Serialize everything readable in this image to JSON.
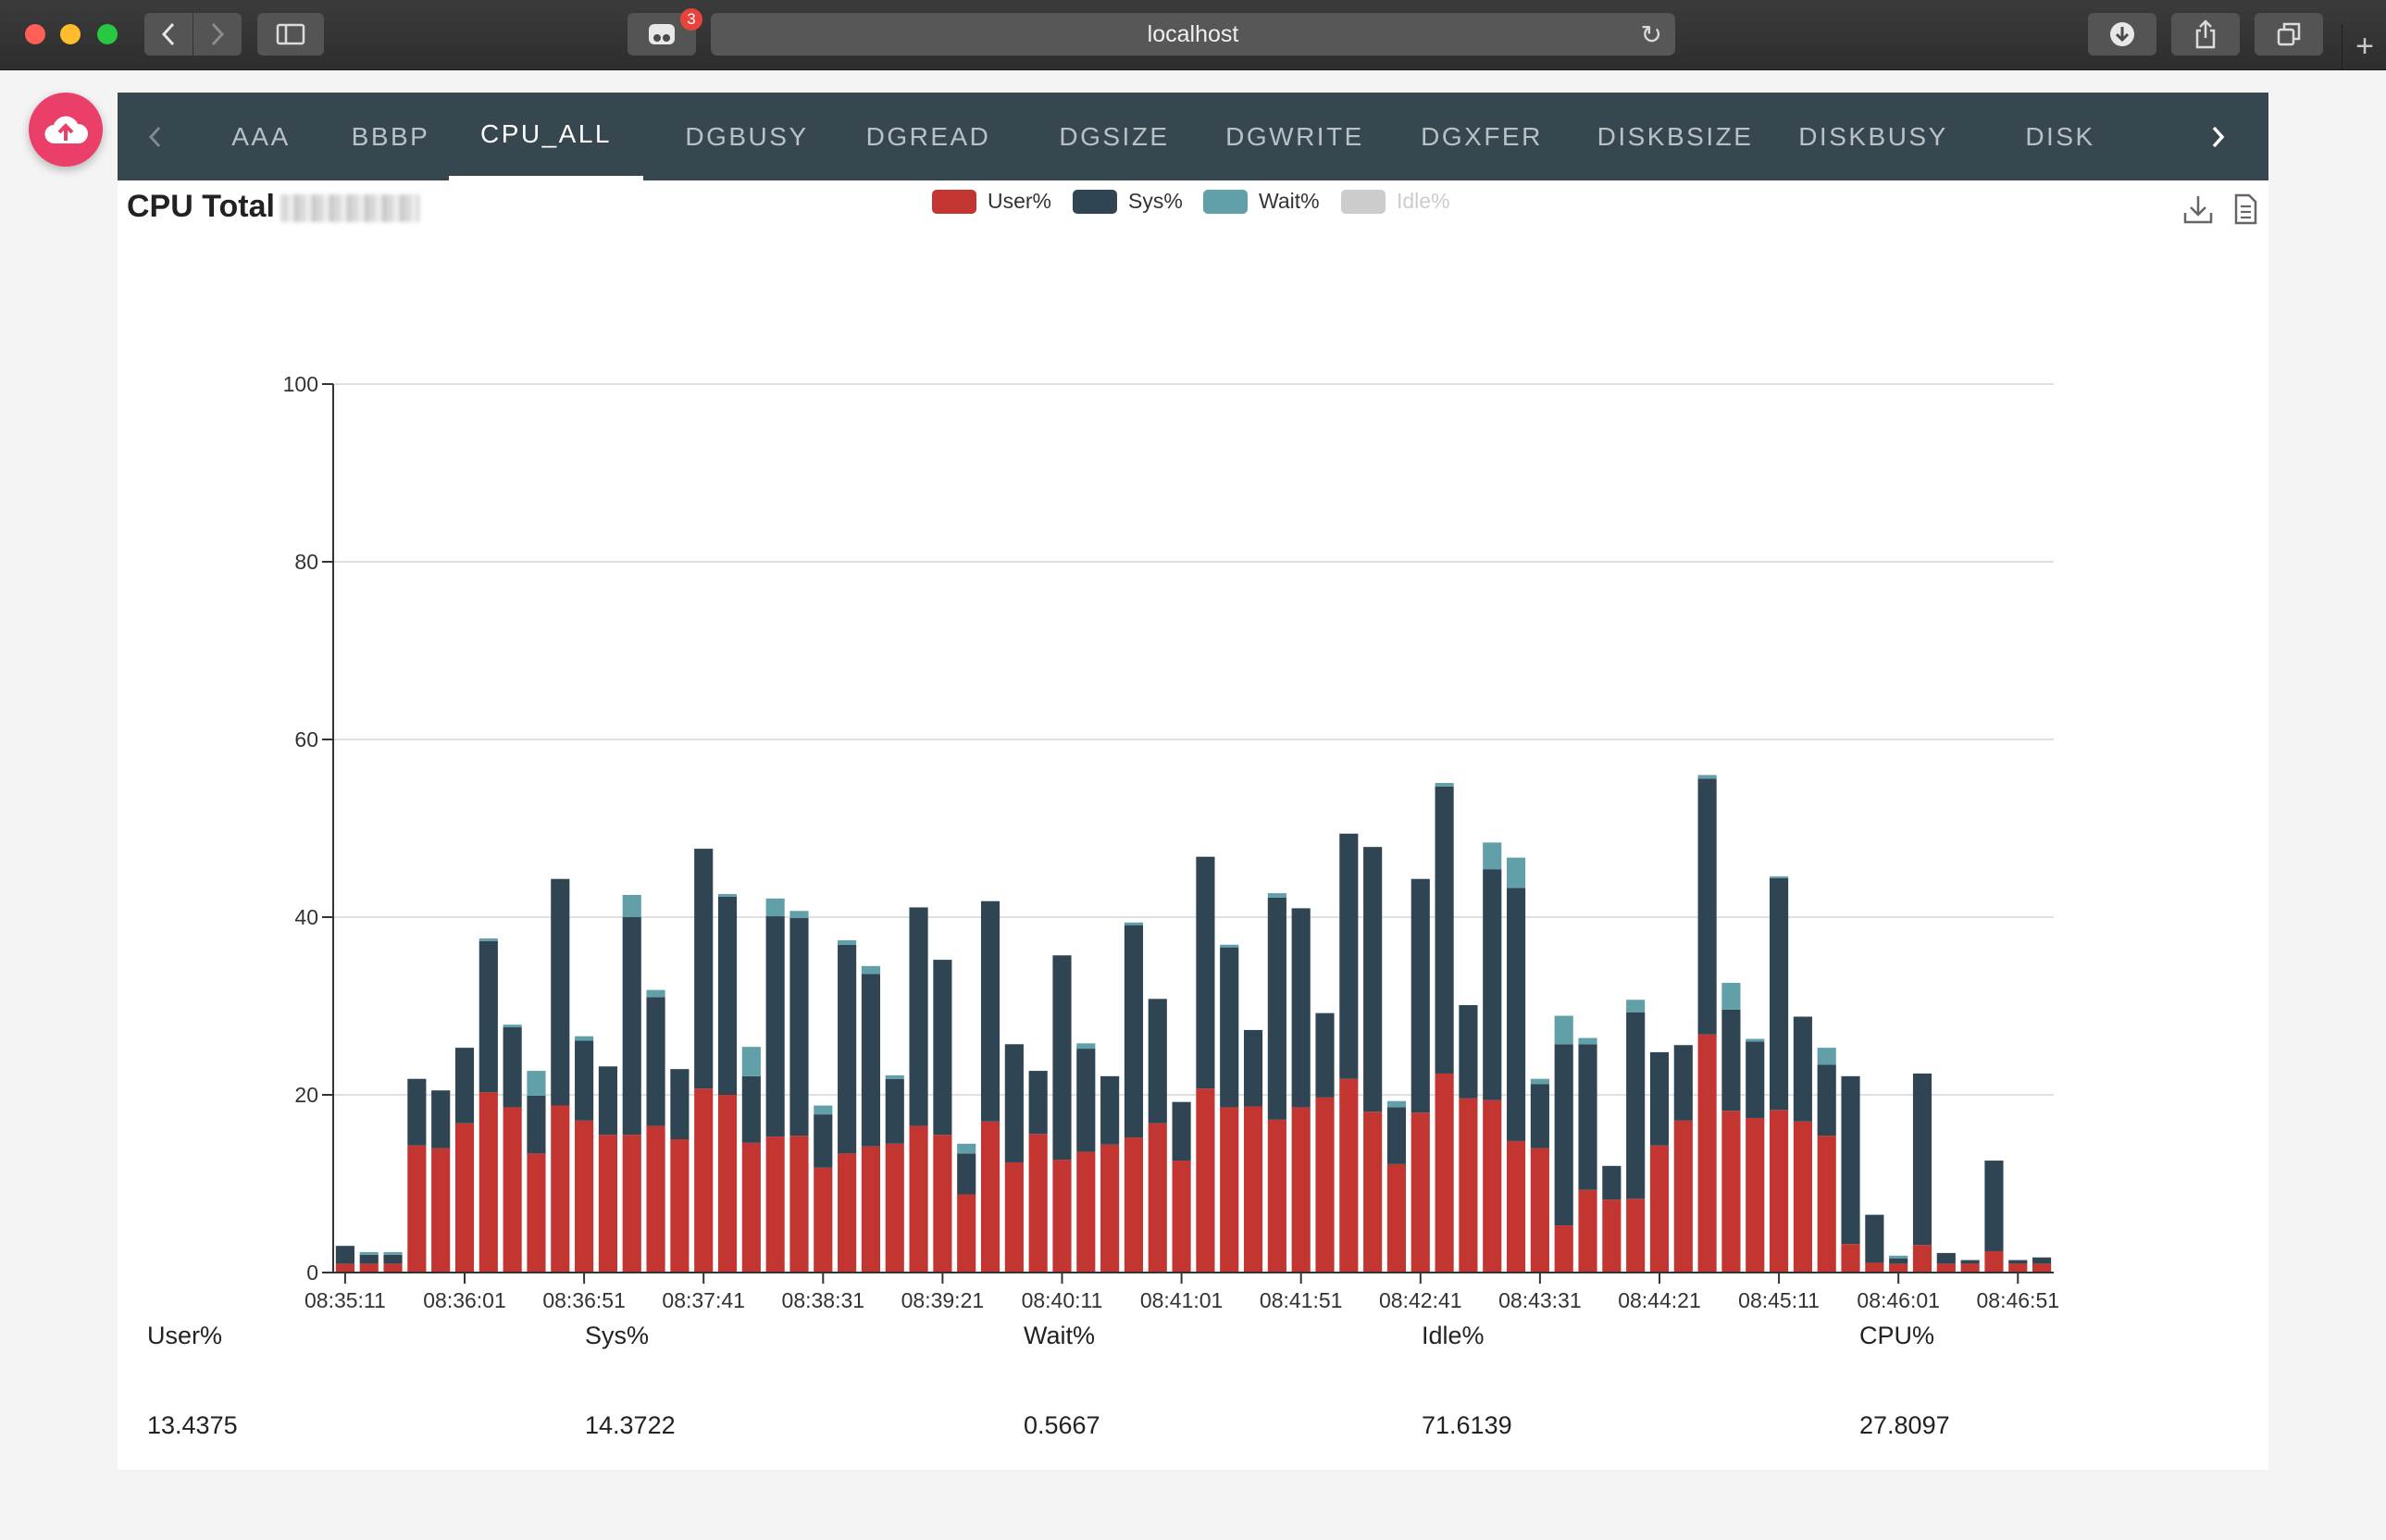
{
  "browser": {
    "url": "localhost",
    "extension_badge": "3",
    "icons": [
      "back-icon",
      "forward-icon",
      "sidebar-icon",
      "extension-icon",
      "reload-icon",
      "download-icon",
      "share-icon",
      "tabs-icon",
      "new-tab-icon"
    ]
  },
  "tabs": {
    "items": [
      "AAA",
      "BBBP",
      "CPU_ALL",
      "DGBUSY",
      "DGREAD",
      "DGSIZE",
      "DGWRITE",
      "DGXFER",
      "DISKBSIZE",
      "DISKBUSY",
      "DISK"
    ],
    "active": "CPU_ALL"
  },
  "chart": {
    "title": "CPU Total",
    "legend": [
      "User%",
      "Sys%",
      "Wait%",
      "Idle%"
    ]
  },
  "colors": {
    "user": "#c23531",
    "sys": "#2f4554",
    "wait": "#61a0a8",
    "idle_disabled": "#cccccc",
    "tabbar": "#37474f",
    "fab": "#ea3f68"
  },
  "chart_data": {
    "type": "bar",
    "stacked": true,
    "ylim": [
      0,
      100
    ],
    "yticks": [
      0,
      20,
      40,
      60,
      80,
      100
    ],
    "xtick_labels": [
      "08:35:11",
      "08:36:01",
      "08:36:51",
      "08:37:41",
      "08:38:31",
      "08:39:21",
      "08:40:11",
      "08:41:01",
      "08:41:51",
      "08:42:41",
      "08:43:31",
      "08:44:21",
      "08:45:11",
      "08:46:01",
      "08:46:51"
    ],
    "grid": true,
    "legend_position": "top-center",
    "series": [
      {
        "name": "User%",
        "values": [
          1,
          1,
          1,
          14.3,
          14,
          16.8,
          20.3,
          18.6,
          13.4,
          18.8,
          17.1,
          15.5,
          15.5,
          16.5,
          15,
          20.7,
          20,
          14.6,
          15.3,
          15.4,
          11.8,
          13.4,
          14.2,
          14.5,
          16.5,
          15.5,
          8.8,
          17,
          12.4,
          15.6,
          12.7,
          13.6,
          14.4,
          15.2,
          16.8,
          12.6,
          20.7,
          18.6,
          18.7,
          17.2,
          18.6,
          19.7,
          21.8,
          18.1,
          12.2,
          18,
          22.4,
          19.6,
          19.4,
          14.8,
          14,
          5.3,
          9.3,
          8.2,
          8.3,
          14.3,
          17.1,
          26.8,
          18.2,
          17.4,
          18.3,
          17,
          15.4,
          3.2,
          1.1,
          1,
          3.1,
          1,
          1,
          2.4,
          1,
          1
        ]
      },
      {
        "name": "Sys%",
        "values": [
          2,
          1,
          1,
          7.5,
          6.5,
          8.5,
          17,
          9,
          6.5,
          25.5,
          9,
          7.7,
          24.5,
          14.5,
          7.9,
          27,
          22.3,
          7.5,
          24.8,
          24.5,
          6,
          23.5,
          19.4,
          7.3,
          24.6,
          19.7,
          4.6,
          24.8,
          13.3,
          7.1,
          23,
          11.6,
          7.7,
          23.9,
          14,
          6.6,
          26.1,
          18,
          8.6,
          25,
          22.4,
          9.5,
          27.6,
          29.8,
          6.4,
          26.3,
          32.3,
          10.5,
          26,
          28.5,
          7.2,
          20.4,
          16.4,
          3.8,
          21,
          10.5,
          8.5,
          28.8,
          11.4,
          8.6,
          26.1,
          11.8,
          8,
          18.9,
          5.4,
          0.6,
          19.3,
          1.2,
          0.4,
          10.2,
          0.4,
          0.7
        ]
      },
      {
        "name": "Wait%",
        "values": [
          0,
          0.3,
          0.3,
          0,
          0,
          0,
          0.3,
          0.3,
          2.8,
          0,
          0.5,
          0,
          2.5,
          0.8,
          0,
          0,
          0.3,
          3.3,
          2,
          0.8,
          1,
          0.5,
          0.9,
          0.4,
          0,
          0,
          1.1,
          0,
          0,
          0,
          0,
          0.6,
          0,
          0.3,
          0,
          0,
          0,
          0.3,
          0,
          0.5,
          0,
          0,
          0,
          0,
          0.7,
          0,
          0.4,
          0,
          3,
          3.4,
          0.6,
          3.2,
          0.7,
          0,
          1.4,
          0,
          0,
          0.4,
          3,
          0.3,
          0.2,
          0,
          1.9,
          0,
          0,
          0.3,
          0,
          0,
          0,
          0,
          0,
          0
        ]
      }
    ]
  },
  "summary": {
    "headers": [
      "User%",
      "Sys%",
      "Wait%",
      "Idle%",
      "CPU%"
    ],
    "values": [
      "13.4375",
      "14.3722",
      "0.5667",
      "71.6139",
      "27.8097"
    ]
  }
}
